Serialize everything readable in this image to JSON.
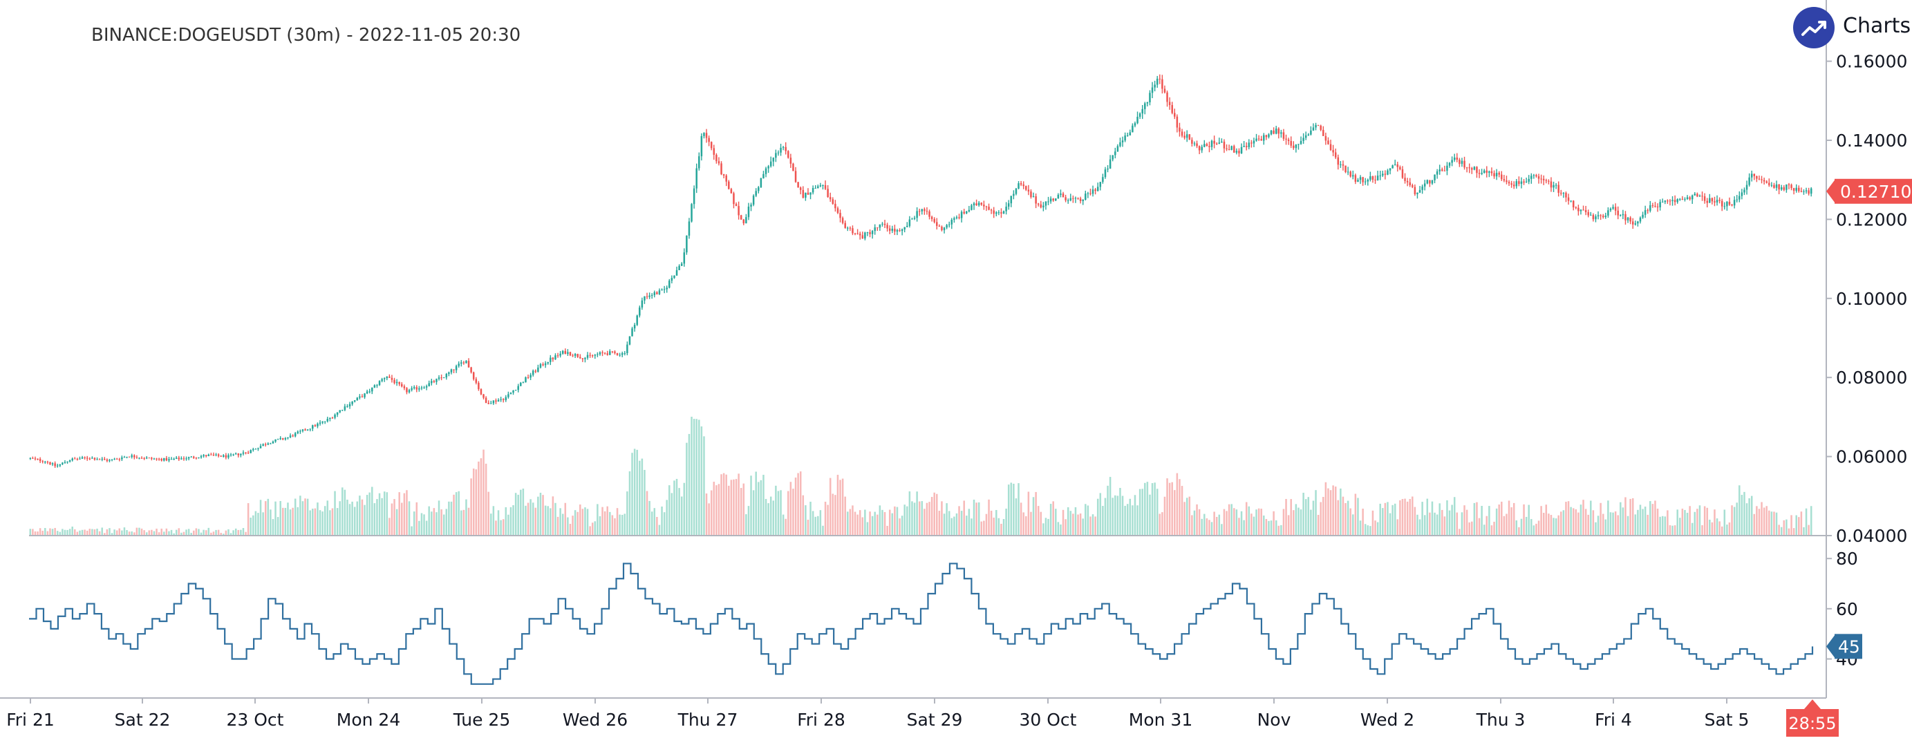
{
  "title": "BINANCE:DOGEUSDT (30m) - 2022-11-05 20:30",
  "brand": {
    "text": "Charts p",
    "icon": "trend-up-icon",
    "color": "#3042a8"
  },
  "colors": {
    "up": "#26a69a",
    "down": "#ef5350",
    "rsi_line": "#2f6f9f",
    "volume_up": "#a7dfd2",
    "volume_down": "#f7b9b8",
    "price_badge": "#ef5350",
    "rsi_badge": "#2f6f9f"
  },
  "chart_data": {
    "type": "candlestick",
    "title": "BINANCE:DOGEUSDT (30m) - 2022-11-05 20:30",
    "x_ticks": [
      "Fri 21",
      "Sat 22",
      "23 Oct",
      "Mon 24",
      "Tue 25",
      "Wed 26",
      "Thu 27",
      "Fri 28",
      "Sat 29",
      "30 Oct",
      "Mon 31",
      "Nov",
      "Wed 2",
      "Thu 3",
      "Fri 4",
      "Sat 5"
    ],
    "price_axis": {
      "ylim": [
        0.04,
        0.165
      ],
      "ticks": [
        "0.16000",
        "0.14000",
        "0.12000",
        "0.10000",
        "0.08000",
        "0.06000",
        "0.04000"
      ]
    },
    "last_price": "0.12710",
    "countdown": "28:55",
    "price_keypoints": [
      {
        "t": 0,
        "p": 0.0595
      },
      {
        "t": 0.8,
        "p": 0.0588
      },
      {
        "t": 1.3,
        "p": 0.0575
      },
      {
        "t": 2,
        "p": 0.0592
      },
      {
        "t": 3,
        "p": 0.0597
      },
      {
        "t": 4,
        "p": 0.059
      },
      {
        "t": 5,
        "p": 0.0602
      },
      {
        "t": 6,
        "p": 0.0595
      },
      {
        "t": 7,
        "p": 0.0592
      },
      {
        "t": 8,
        "p": 0.0597
      },
      {
        "t": 9,
        "p": 0.0603
      },
      {
        "t": 10,
        "p": 0.06
      },
      {
        "t": 11,
        "p": 0.0612
      },
      {
        "t": 12,
        "p": 0.0635
      },
      {
        "t": 13,
        "p": 0.0648
      },
      {
        "t": 14,
        "p": 0.067
      },
      {
        "t": 15,
        "p": 0.0692
      },
      {
        "t": 16,
        "p": 0.073
      },
      {
        "t": 17,
        "p": 0.076
      },
      {
        "t": 18,
        "p": 0.0805
      },
      {
        "t": 19,
        "p": 0.0765
      },
      {
        "t": 20,
        "p": 0.078
      },
      {
        "t": 21,
        "p": 0.0805
      },
      {
        "t": 22,
        "p": 0.0845
      },
      {
        "t": 23,
        "p": 0.0735
      },
      {
        "t": 24,
        "p": 0.0748
      },
      {
        "t": 25,
        "p": 0.0795
      },
      {
        "t": 26,
        "p": 0.0838
      },
      {
        "t": 27,
        "p": 0.0865
      },
      {
        "t": 28,
        "p": 0.085
      },
      {
        "t": 29,
        "p": 0.0862
      },
      {
        "t": 30,
        "p": 0.086
      },
      {
        "t": 31,
        "p": 0.1005
      },
      {
        "t": 32,
        "p": 0.1018
      },
      {
        "t": 33,
        "p": 0.11
      },
      {
        "t": 34,
        "p": 0.143
      },
      {
        "t": 35,
        "p": 0.131
      },
      {
        "t": 36,
        "p": 0.119
      },
      {
        "t": 37,
        "p": 0.131
      },
      {
        "t": 38,
        "p": 0.139
      },
      {
        "t": 39,
        "p": 0.126
      },
      {
        "t": 40,
        "p": 0.129
      },
      {
        "t": 41,
        "p": 0.119
      },
      {
        "t": 42,
        "p": 0.1155
      },
      {
        "t": 43,
        "p": 0.1185
      },
      {
        "t": 44,
        "p": 0.1165
      },
      {
        "t": 45,
        "p": 0.123
      },
      {
        "t": 46,
        "p": 0.1175
      },
      {
        "t": 47,
        "p": 0.121
      },
      {
        "t": 48,
        "p": 0.1245
      },
      {
        "t": 49,
        "p": 0.121
      },
      {
        "t": 50,
        "p": 0.129
      },
      {
        "t": 51,
        "p": 0.1235
      },
      {
        "t": 52,
        "p": 0.126
      },
      {
        "t": 53,
        "p": 0.1245
      },
      {
        "t": 54,
        "p": 0.1285
      },
      {
        "t": 55,
        "p": 0.139
      },
      {
        "t": 56,
        "p": 0.1455
      },
      {
        "t": 57,
        "p": 0.1565
      },
      {
        "t": 58,
        "p": 0.143
      },
      {
        "t": 59,
        "p": 0.138
      },
      {
        "t": 60,
        "p": 0.1395
      },
      {
        "t": 61,
        "p": 0.137
      },
      {
        "t": 62,
        "p": 0.14
      },
      {
        "t": 63,
        "p": 0.1425
      },
      {
        "t": 64,
        "p": 0.138
      },
      {
        "t": 65,
        "p": 0.1445
      },
      {
        "t": 66,
        "p": 0.135
      },
      {
        "t": 67,
        "p": 0.13
      },
      {
        "t": 68,
        "p": 0.1305
      },
      {
        "t": 69,
        "p": 0.1335
      },
      {
        "t": 70,
        "p": 0.1265
      },
      {
        "t": 71,
        "p": 0.131
      },
      {
        "t": 72,
        "p": 0.135
      },
      {
        "t": 73,
        "p": 0.1325
      },
      {
        "t": 74,
        "p": 0.1315
      },
      {
        "t": 75,
        "p": 0.129
      },
      {
        "t": 76,
        "p": 0.1305
      },
      {
        "t": 77,
        "p": 0.1285
      },
      {
        "t": 78,
        "p": 0.1235
      },
      {
        "t": 79,
        "p": 0.12
      },
      {
        "t": 80,
        "p": 0.1225
      },
      {
        "t": 81,
        "p": 0.119
      },
      {
        "t": 82,
        "p": 0.1235
      },
      {
        "t": 83,
        "p": 0.1245
      },
      {
        "t": 84,
        "p": 0.126
      },
      {
        "t": 85,
        "p": 0.1245
      },
      {
        "t": 86,
        "p": 0.1235
      },
      {
        "t": 87,
        "p": 0.131
      },
      {
        "t": 88,
        "p": 0.1285
      },
      {
        "t": 89,
        "p": 0.128
      },
      {
        "t": 90,
        "p": 0.1271
      }
    ],
    "volume": {
      "series": "volume",
      "max_relative_peak": 0.53
    },
    "rsi": {
      "ylim": [
        25,
        85
      ],
      "ticks": [
        "80",
        "60",
        "40"
      ],
      "last_value": "45",
      "values": [
        56,
        60,
        55,
        52,
        57,
        60,
        56,
        58,
        62,
        58,
        52,
        48,
        50,
        46,
        44,
        50,
        52,
        56,
        55,
        58,
        62,
        66,
        70,
        68,
        64,
        58,
        52,
        46,
        40,
        40,
        44,
        48,
        56,
        64,
        62,
        56,
        52,
        48,
        54,
        50,
        44,
        40,
        42,
        46,
        44,
        40,
        38,
        40,
        42,
        40,
        38,
        44,
        50,
        52,
        56,
        54,
        60,
        52,
        46,
        40,
        34,
        30,
        30,
        30,
        32,
        36,
        40,
        44,
        50,
        56,
        56,
        54,
        58,
        64,
        60,
        56,
        52,
        50,
        54,
        60,
        68,
        72,
        78,
        74,
        68,
        64,
        62,
        58,
        60,
        55,
        54,
        56,
        52,
        50,
        54,
        58,
        60,
        56,
        52,
        54,
        48,
        42,
        38,
        34,
        38,
        44,
        50,
        48,
        46,
        50,
        52,
        46,
        44,
        48,
        52,
        56,
        58,
        54,
        56,
        60,
        58,
        56,
        54,
        60,
        66,
        70,
        74,
        78,
        76,
        72,
        66,
        60,
        54,
        50,
        48,
        46,
        50,
        52,
        48,
        46,
        50,
        54,
        52,
        56,
        54,
        58,
        56,
        60,
        62,
        58,
        56,
        54,
        50,
        46,
        44,
        42,
        40,
        42,
        46,
        50,
        54,
        58,
        60,
        62,
        64,
        66,
        70,
        68,
        62,
        56,
        50,
        44,
        40,
        38,
        44,
        50,
        58,
        62,
        66,
        64,
        60,
        54,
        50,
        44,
        40,
        36,
        34,
        40,
        46,
        50,
        48,
        46,
        44,
        42,
        40,
        42,
        44,
        48,
        52,
        56,
        58,
        60,
        54,
        48,
        44,
        40,
        38,
        40,
        42,
        44,
        46,
        42,
        40,
        38,
        36,
        38,
        40,
        42,
        44,
        46,
        48,
        54,
        58,
        60,
        56,
        52,
        48,
        46,
        44,
        42,
        40,
        38,
        36,
        38,
        40,
        42,
        44,
        42,
        40,
        38,
        36,
        34,
        36,
        38,
        40,
        42,
        45
      ]
    }
  }
}
